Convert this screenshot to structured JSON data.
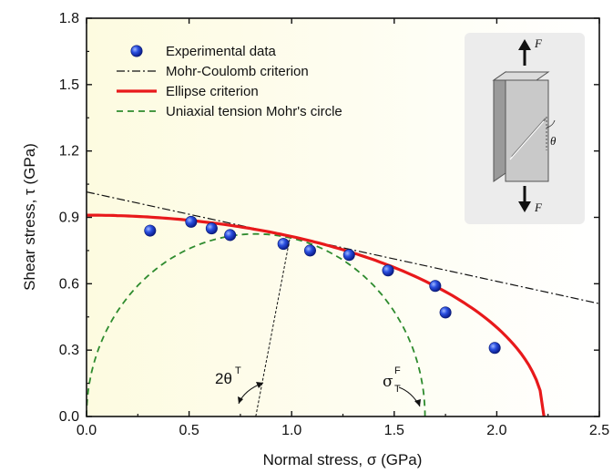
{
  "chart_data": {
    "type": "scatter",
    "xlabel": "Normal stress, σ (GPa)",
    "ylabel": "Shear stress, τ (GPa)",
    "xlim": [
      0,
      2.5
    ],
    "ylim": [
      0,
      1.8
    ],
    "xticks": [
      "0.0",
      "0.5",
      "1.0",
      "1.5",
      "2.0",
      "2.5"
    ],
    "yticks": [
      "0.0",
      "0.3",
      "0.6",
      "0.9",
      "1.2",
      "1.5",
      "1.8"
    ],
    "legend_position": "top-left",
    "series": [
      {
        "name": "Experimental data",
        "kind": "points",
        "color": "#1f3fd6",
        "x": [
          0.31,
          0.51,
          0.61,
          0.7,
          0.96,
          1.09,
          1.28,
          1.47,
          1.7,
          1.75,
          1.99
        ],
        "y": [
          0.84,
          0.88,
          0.85,
          0.82,
          0.78,
          0.75,
          0.73,
          0.66,
          0.59,
          0.47,
          0.31
        ]
      },
      {
        "name": "Mohr-Coulomb criterion",
        "kind": "dash-dot-line",
        "color": "#111111",
        "x": [
          0,
          2.5
        ],
        "y": [
          1.015,
          0.51
        ]
      },
      {
        "name": "Ellipse criterion",
        "kind": "ellipse-quarter",
        "color": "#e8191b",
        "x_intercept": 2.23,
        "y_intercept": 0.91
      },
      {
        "name": "Uniaxial tension Mohr's circle",
        "kind": "dashed-semicircle",
        "color": "#2e8b2e",
        "x_range": [
          0,
          1.65
        ]
      }
    ],
    "annotations": {
      "angle_label": "2θ",
      "angle_sup": "T",
      "sigma_label": "σ",
      "sigma_sup": "F",
      "sigma_sub": "T"
    }
  },
  "inset": {
    "force_top": "F",
    "force_bottom": "F",
    "angle": "θ"
  },
  "colors": {
    "background_left": "#fdfbe0",
    "background_right": "#ffffff",
    "inset_bg": "#ececec",
    "specimen": "#c9c9c9"
  }
}
